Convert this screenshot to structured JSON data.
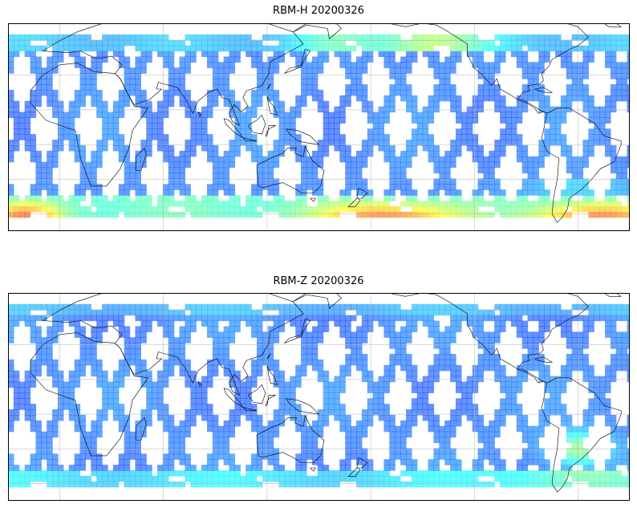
{
  "panels": [
    {
      "title": "RBM-H 20200326",
      "variable": "RBM-H",
      "date": "20200326"
    },
    {
      "title": "RBM-Z 20200326",
      "variable": "RBM-Z",
      "date": "20200326"
    }
  ],
  "map": {
    "projection": "plate-carree",
    "central_longitude": 150,
    "extent_lon": [
      -30,
      330
    ],
    "extent_lat": [
      -60,
      60
    ],
    "data_lat_range": [
      -52,
      52
    ],
    "gridline_lons": [
      0,
      60,
      120,
      180,
      240,
      300
    ],
    "gridline_lats": [
      -50,
      -30,
      -10,
      10,
      30,
      50
    ],
    "coastlines": true
  },
  "colormap": {
    "name": "jet",
    "alpha": 0.6,
    "stops": [
      "#00007f",
      "#0000ff",
      "#007fff",
      "#00ffff",
      "#7fff7f",
      "#ffff00",
      "#ff7f00",
      "#ff0000",
      "#7f0000"
    ]
  }
}
